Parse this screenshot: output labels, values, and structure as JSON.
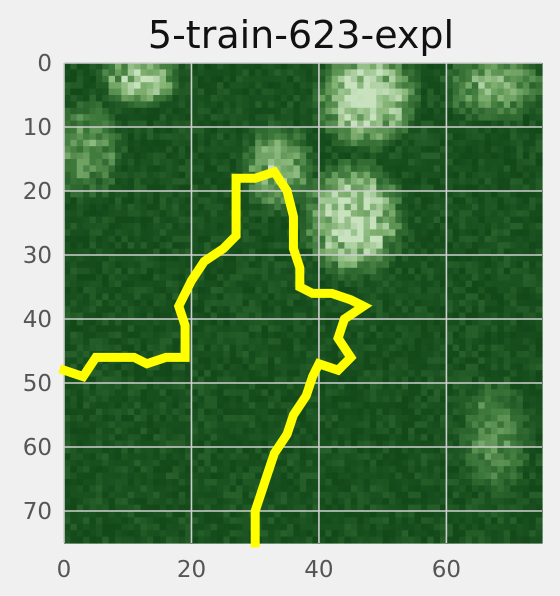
{
  "chart_data": {
    "type": "heatmap",
    "title": "5-train-623-expl",
    "xlabel": "",
    "ylabel": "",
    "xlim": [
      0,
      75
    ],
    "ylim": [
      75,
      0
    ],
    "x_ticks": [
      0,
      20,
      40,
      60
    ],
    "y_ticks": [
      0,
      10,
      20,
      30,
      40,
      50,
      60,
      70
    ],
    "grid": true,
    "colormap": [
      "#0c3f12",
      "#1a5220",
      "#3f7a3c",
      "#7fb070",
      "#c8e2bf"
    ],
    "background_region_labels": "aerial forest image, dark green canopy with light clearing at top-center",
    "bright_regions": [
      {
        "x": [
          42,
          52
        ],
        "y": [
          0,
          10
        ],
        "level": 0.9
      },
      {
        "x": [
          40,
          50
        ],
        "y": [
          18,
          30
        ],
        "level": 0.85
      },
      {
        "x": [
          8,
          15
        ],
        "y": [
          0,
          4
        ],
        "level": 0.75
      },
      {
        "x": [
          30,
          36
        ],
        "y": [
          12,
          20
        ],
        "level": 0.6
      },
      {
        "x": [
          62,
          72
        ],
        "y": [
          0,
          6
        ],
        "level": 0.55
      },
      {
        "x": [
          0,
          6
        ],
        "y": [
          8,
          18
        ],
        "level": 0.45
      },
      {
        "x": [
          64,
          70
        ],
        "y": [
          52,
          64
        ],
        "level": 0.4
      }
    ],
    "overlay": {
      "color": "#ffff00",
      "label": "explanation contour",
      "points": [
        [
          0,
          48
        ],
        [
          3,
          49
        ],
        [
          5,
          46
        ],
        [
          8,
          46
        ],
        [
          11,
          46
        ],
        [
          13,
          47
        ],
        [
          16,
          46
        ],
        [
          19,
          46
        ],
        [
          19,
          41
        ],
        [
          18,
          38
        ],
        [
          20,
          34
        ],
        [
          22,
          31
        ],
        [
          25,
          29
        ],
        [
          27,
          27
        ],
        [
          27,
          23
        ],
        [
          27,
          18
        ],
        [
          30,
          18
        ],
        [
          33,
          17
        ],
        [
          35,
          20
        ],
        [
          36,
          24
        ],
        [
          36,
          29
        ],
        [
          37,
          32
        ],
        [
          37,
          35
        ],
        [
          39,
          36
        ],
        [
          42,
          36
        ],
        [
          45,
          37
        ],
        [
          47,
          38
        ],
        [
          44,
          40
        ],
        [
          43,
          43
        ],
        [
          45,
          46
        ],
        [
          43,
          48
        ],
        [
          40,
          47
        ],
        [
          39,
          49
        ],
        [
          38,
          52
        ],
        [
          36,
          55
        ],
        [
          35,
          58
        ],
        [
          33,
          61
        ],
        [
          32,
          64
        ],
        [
          31,
          67
        ],
        [
          30,
          70
        ],
        [
          30,
          73
        ],
        [
          30,
          75
        ]
      ]
    }
  }
}
